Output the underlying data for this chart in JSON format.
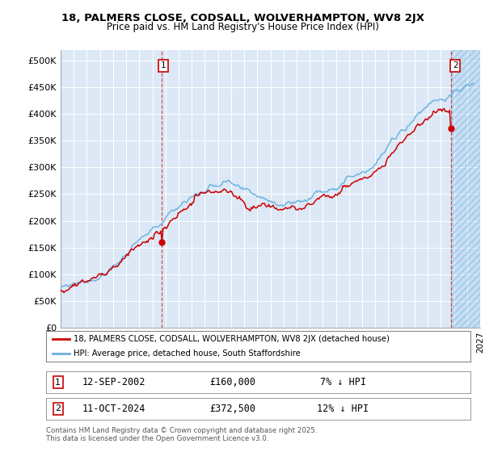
{
  "title_line1": "18, PALMERS CLOSE, CODSALL, WOLVERHAMPTON, WV8 2JX",
  "title_line2": "Price paid vs. HM Land Registry's House Price Index (HPI)",
  "ylabel_ticks": [
    "£0",
    "£50K",
    "£100K",
    "£150K",
    "£200K",
    "£250K",
    "£300K",
    "£350K",
    "£400K",
    "£450K",
    "£500K"
  ],
  "ytick_values": [
    0,
    50000,
    100000,
    150000,
    200000,
    250000,
    300000,
    350000,
    400000,
    450000,
    500000
  ],
  "ylim": [
    0,
    520000
  ],
  "xlim_start": 1995.0,
  "xlim_end": 2027.0,
  "hpi_color": "#6ab0e0",
  "price_color": "#cc0000",
  "plot_bg_color": "#dce8f5",
  "grid_color": "#ffffff",
  "annotation1_label": "1",
  "annotation2_label": "2",
  "sale1_x": 2002.7,
  "sale1_y": 160000,
  "sale2_x": 2024.79,
  "sale2_y": 372500,
  "legend_line1": "18, PALMERS CLOSE, CODSALL, WOLVERHAMPTON, WV8 2JX (detached house)",
  "legend_line2": "HPI: Average price, detached house, South Staffordshire",
  "table_row1": [
    "1",
    "12-SEP-2002",
    "£160,000",
    "7% ↓ HPI"
  ],
  "table_row2": [
    "2",
    "11-OCT-2024",
    "£372,500",
    "12% ↓ HPI"
  ],
  "footer": "Contains HM Land Registry data © Crown copyright and database right 2025.\nThis data is licensed under the Open Government Licence v3.0.",
  "future_start": 2024.8
}
